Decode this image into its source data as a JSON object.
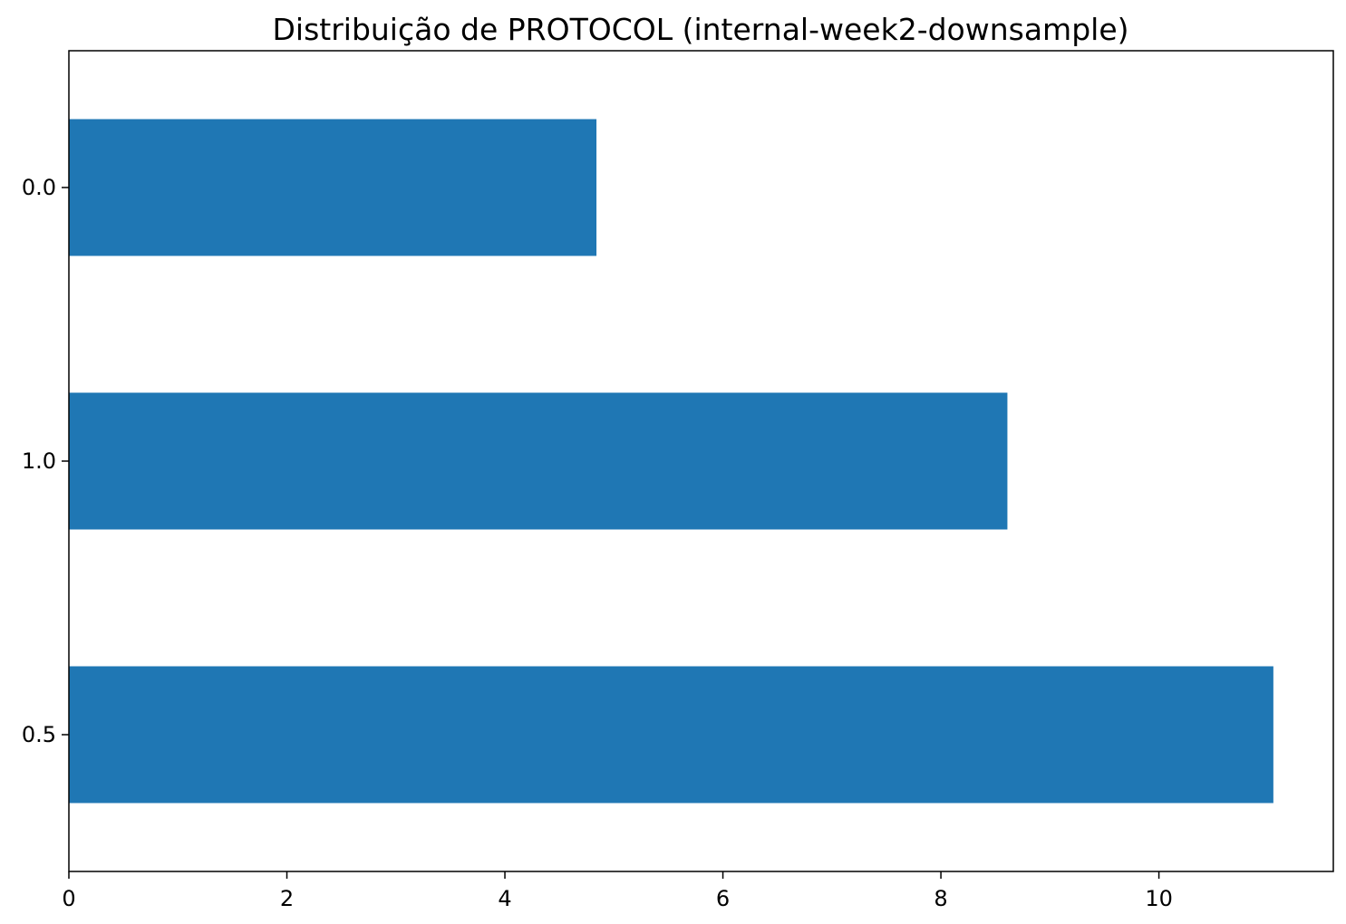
{
  "chart_data": {
    "type": "bar",
    "orientation": "horizontal",
    "title": "Distribuição de PROTOCOL (internal-week2-downsample)",
    "xlabel": "",
    "ylabel": "",
    "categories": [
      "0.0",
      "1.0",
      "0.5"
    ],
    "values": [
      4.84,
      8.61,
      11.05
    ],
    "xlim": [
      0,
      11.6
    ],
    "xticks": [
      0,
      2,
      4,
      6,
      8,
      10
    ],
    "xtick_labels": [
      "0",
      "2",
      "4",
      "6",
      "8",
      "10"
    ],
    "grid": false,
    "legend": "none",
    "bar_color": "#1f77b4"
  }
}
